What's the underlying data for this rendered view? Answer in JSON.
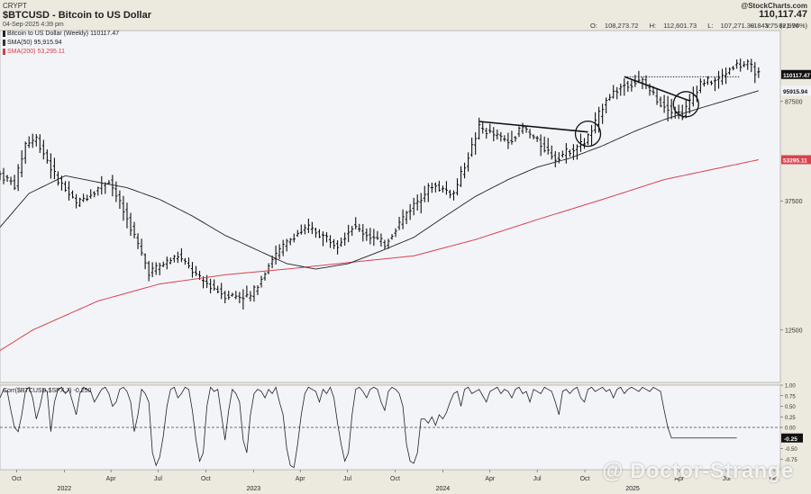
{
  "header": {
    "exchange": "CRYPT",
    "title": "$BTCUSD - Bitcoin to US Dollar",
    "timestamp": "04-Sep-2025 4:39 pm",
    "brand": "@StockCharts.com",
    "last_price": "110,117.47",
    "ohlc": [
      {
        "label": "O:",
        "value": "108,273.72"
      },
      {
        "label": "H:",
        "value": "112,601.73"
      },
      {
        "label": "L:",
        "value": "107,271.39"
      },
      {
        "label": "V:",
        "value": "82,994"
      }
    ],
    "change": "+1843.75 (+1.70%)"
  },
  "legend": {
    "price": {
      "text": "Bitcoin to US Dollar (Weekly) 110117.47",
      "color": "#222222"
    },
    "sma50": {
      "text": "SMA(50) 95,915.94",
      "color": "#333333"
    },
    "sma200": {
      "text": "SMA(200) 53,295.11",
      "color": "#d0404a"
    }
  },
  "colors": {
    "background": "#ece9df",
    "panel": "#f3f4f8",
    "price_bar": "#111111",
    "sma50": "#222222",
    "sma200": "#d9424c",
    "corr_line": "#222222",
    "last_badge": "#111111",
    "sma50_badge": "#111111",
    "sma200_badge": "#d9424c"
  },
  "watermark": "@ Doctor-Strange",
  "chart_data": [
    {
      "type": "ohlc",
      "title": "$BTCUSD - Bitcoin to US Dollar",
      "frequency": "weekly",
      "y_scale": "log",
      "ylim": [
        8000,
        160000
      ],
      "y_ticks": [
        {
          "value": 12500,
          "label": "12500"
        },
        {
          "value": 37500,
          "label": "37500"
        },
        {
          "value": 87500,
          "label": "87500"
        }
      ],
      "price_badges": [
        {
          "value": 110117.47,
          "label": "110117.47",
          "name": "last"
        },
        {
          "value": 95915.94,
          "label": "95915.94",
          "name": "sma50"
        },
        {
          "value": 53295.11,
          "label": "53295.11",
          "name": "sma200"
        }
      ],
      "x_date_range": [
        "2021-08-30",
        "2025-10-13"
      ],
      "x_ticks": [
        {
          "date": "2021-10-01",
          "label": "Oct",
          "year": ""
        },
        {
          "date": "2022-01-01",
          "label": "",
          "year": "2022"
        },
        {
          "date": "2022-04-01",
          "label": "Apr",
          "year": ""
        },
        {
          "date": "2022-07-01",
          "label": "Jul",
          "year": ""
        },
        {
          "date": "2022-10-01",
          "label": "Oct",
          "year": ""
        },
        {
          "date": "2023-01-01",
          "label": "",
          "year": "2023"
        },
        {
          "date": "2023-04-01",
          "label": "Apr",
          "year": ""
        },
        {
          "date": "2023-07-01",
          "label": "Jul",
          "year": ""
        },
        {
          "date": "2023-10-01",
          "label": "Oct",
          "year": ""
        },
        {
          "date": "2024-01-01",
          "label": "",
          "year": "2024"
        },
        {
          "date": "2024-04-01",
          "label": "Apr",
          "year": ""
        },
        {
          "date": "2024-07-01",
          "label": "Jul",
          "year": ""
        },
        {
          "date": "2024-10-01",
          "label": "Oct",
          "year": ""
        },
        {
          "date": "2025-01-01",
          "label": "",
          "year": "2025"
        },
        {
          "date": "2025-04-01",
          "label": "Apr",
          "year": ""
        },
        {
          "date": "2025-07-01",
          "label": "Jul",
          "year": ""
        },
        {
          "date": "2025-10-01",
          "label": "Oct",
          "year": ""
        }
      ],
      "close_anchors": [
        [
          "2021-08-30",
          47000
        ],
        [
          "2021-09-27",
          43000
        ],
        [
          "2021-10-18",
          61000
        ],
        [
          "2021-11-08",
          64000
        ],
        [
          "2021-12-13",
          47000
        ],
        [
          "2022-01-24",
          36500
        ],
        [
          "2022-03-28",
          45000
        ],
        [
          "2022-05-09",
          30000
        ],
        [
          "2022-06-13",
          20500
        ],
        [
          "2022-08-08",
          23500
        ],
        [
          "2022-09-19",
          19300
        ],
        [
          "2022-11-07",
          16800
        ],
        [
          "2022-12-26",
          16600
        ],
        [
          "2023-02-06",
          23000
        ],
        [
          "2023-03-20",
          28000
        ],
        [
          "2023-04-17",
          29800
        ],
        [
          "2023-06-12",
          26000
        ],
        [
          "2023-07-10",
          30200
        ],
        [
          "2023-09-11",
          26000
        ],
        [
          "2023-10-23",
          34000
        ],
        [
          "2023-12-11",
          43000
        ],
        [
          "2024-01-22",
          40000
        ],
        [
          "2024-03-11",
          70000
        ],
        [
          "2024-05-06",
          62000
        ],
        [
          "2024-06-03",
          70000
        ],
        [
          "2024-08-05",
          54000
        ],
        [
          "2024-09-30",
          62000
        ],
        [
          "2024-10-14",
          68000
        ],
        [
          "2024-11-11",
          90000
        ],
        [
          "2024-12-16",
          101000
        ],
        [
          "2025-01-20",
          104000
        ],
        [
          "2025-02-24",
          86000
        ],
        [
          "2025-04-07",
          78000
        ],
        [
          "2025-05-12",
          103000
        ],
        [
          "2025-06-16",
          105000
        ],
        [
          "2025-07-14",
          119000
        ],
        [
          "2025-08-11",
          120000
        ],
        [
          "2025-09-01",
          110117
        ]
      ],
      "sma50_anchors": [
        [
          "2021-08-30",
          30000
        ],
        [
          "2021-10-25",
          40000
        ],
        [
          "2022-01-03",
          46500
        ],
        [
          "2022-03-07",
          44000
        ],
        [
          "2022-05-02",
          42000
        ],
        [
          "2022-07-04",
          38000
        ],
        [
          "2022-09-05",
          33000
        ],
        [
          "2022-11-07",
          28000
        ],
        [
          "2023-01-02",
          25000
        ],
        [
          "2023-03-06",
          22000
        ],
        [
          "2023-05-01",
          21000
        ],
        [
          "2023-07-03",
          22000
        ],
        [
          "2023-09-04",
          24500
        ],
        [
          "2023-11-06",
          27500
        ],
        [
          "2024-01-01",
          32500
        ],
        [
          "2024-03-04",
          39000
        ],
        [
          "2024-05-06",
          45000
        ],
        [
          "2024-07-01",
          50000
        ],
        [
          "2024-09-02",
          54000
        ],
        [
          "2024-11-04",
          60000
        ],
        [
          "2025-01-06",
          68000
        ],
        [
          "2025-03-03",
          75000
        ],
        [
          "2025-05-05",
          82000
        ],
        [
          "2025-07-07",
          89000
        ],
        [
          "2025-09-01",
          95916
        ]
      ],
      "sma200_anchors": [
        [
          "2021-08-30",
          10500
        ],
        [
          "2021-11-01",
          12500
        ],
        [
          "2022-03-07",
          16000
        ],
        [
          "2022-07-04",
          18500
        ],
        [
          "2022-11-07",
          20000
        ],
        [
          "2023-03-06",
          21000
        ],
        [
          "2023-07-03",
          22200
        ],
        [
          "2023-11-06",
          23500
        ],
        [
          "2024-03-04",
          27000
        ],
        [
          "2024-07-01",
          32000
        ],
        [
          "2024-11-04",
          38000
        ],
        [
          "2025-03-03",
          45000
        ],
        [
          "2025-09-01",
          53295
        ]
      ],
      "trendlines": [
        {
          "from": [
            "2024-03-11",
            73800
          ],
          "to": [
            "2024-10-07",
            67500
          ],
          "style": "solid"
        },
        {
          "from": [
            "2024-12-16",
            108000
          ],
          "to": [
            "2025-04-21",
            88000
          ],
          "style": "solid"
        },
        {
          "from": [
            "2024-12-16",
            108000
          ],
          "to": [
            "2025-07-28",
            108000
          ],
          "style": "dotted"
        }
      ],
      "circles": [
        {
          "center": [
            "2024-10-07",
            66500
          ]
        },
        {
          "center": [
            "2025-04-14",
            85500
          ]
        }
      ]
    },
    {
      "type": "line",
      "title": "Corr($BTCUSD,$SPX,7) -0.250",
      "ylim": [
        -1,
        1
      ],
      "y_ticks": [
        {
          "value": 1.0,
          "label": "1.00"
        },
        {
          "value": 0.75,
          "label": "0.75"
        },
        {
          "value": 0.5,
          "label": "0.50"
        },
        {
          "value": 0.25,
          "label": "0.25"
        },
        {
          "value": 0.0,
          "label": "0.00"
        },
        {
          "value": -0.5,
          "label": "-0.50"
        },
        {
          "value": -0.75,
          "label": "-0.75"
        }
      ],
      "last_badge": {
        "value": -0.25,
        "label": "-0.25"
      },
      "zero_line": "dashed",
      "values": [
        0.7,
        0.9,
        0.85,
        0.4,
        0.0,
        -0.1,
        0.3,
        0.85,
        0.95,
        0.7,
        0.2,
        0.5,
        0.9,
        0.85,
        -0.1,
        0.6,
        0.9,
        0.95,
        0.8,
        0.9,
        0.6,
        0.3,
        0.8,
        0.95,
        0.9,
        0.85,
        0.6,
        0.75,
        0.9,
        0.95,
        0.8,
        0.5,
        0.6,
        0.9,
        0.95,
        0.85,
        0.6,
        -0.1,
        0.3,
        0.9,
        0.8,
        0.6,
        -0.6,
        -0.9,
        -0.7,
        -0.2,
        0.5,
        0.9,
        0.95,
        0.7,
        0.8,
        0.95,
        0.9,
        0.4,
        -0.3,
        -0.8,
        -0.6,
        0.5,
        0.95,
        0.85,
        0.9,
        0.3,
        -0.3,
        0.4,
        0.9,
        0.8,
        0.6,
        -0.3,
        -0.6,
        0.3,
        0.8,
        0.9,
        0.85,
        0.7,
        0.9,
        0.8,
        0.95,
        0.6,
        0.3,
        -0.5,
        -0.9,
        -0.95,
        -0.4,
        0.3,
        0.8,
        0.95,
        0.9,
        0.85,
        0.6,
        0.9,
        0.8,
        0.95,
        0.7,
        0.1,
        -0.4,
        -0.8,
        -0.6,
        0.3,
        0.9,
        0.95,
        0.85,
        0.7,
        0.9,
        0.95,
        0.9,
        0.6,
        0.4,
        0.85,
        0.95,
        0.9,
        0.8,
        0.5,
        -0.4,
        -0.8,
        -0.85,
        -0.6,
        0.2,
        0.2,
        0.1,
        0.25,
        0.05,
        0.3,
        0.2,
        0.35,
        0.6,
        0.8,
        0.85,
        0.5,
        0.9,
        0.95,
        0.8,
        0.85,
        0.9,
        0.75,
        0.6,
        0.85,
        0.9,
        0.95,
        0.8,
        0.9,
        0.85,
        0.7,
        0.9,
        0.95,
        0.8,
        0.85,
        0.6,
        0.9,
        0.85,
        0.8,
        0.95,
        0.9,
        0.85,
        0.6,
        0.3,
        0.85,
        0.9,
        0.8,
        0.9,
        0.95,
        0.7,
        0.6,
        0.9,
        0.95,
        0.85,
        0.9,
        0.95,
        0.85,
        0.9,
        0.7,
        0.9,
        0.95,
        0.8,
        0.9,
        0.95,
        0.9,
        0.85,
        0.95,
        0.9,
        0.85,
        0.95,
        0.9,
        0.85,
        0.4,
        0.0,
        -0.25,
        -0.25,
        -0.25,
        -0.25,
        -0.25,
        -0.25,
        -0.25,
        -0.25,
        -0.25,
        -0.25,
        -0.25,
        -0.25,
        -0.25,
        -0.25,
        -0.25,
        -0.25,
        -0.25,
        -0.25,
        -0.25
      ]
    }
  ]
}
